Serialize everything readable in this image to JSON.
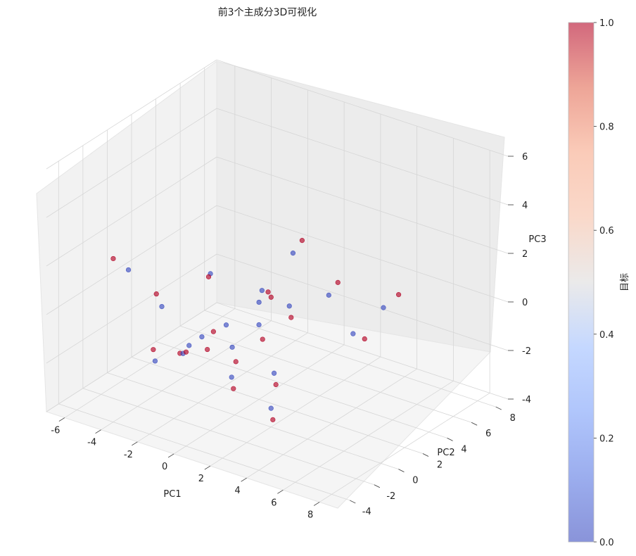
{
  "chart_data": {
    "type": "scatter",
    "title": "前3个主成分3D可视化",
    "xlabel": "PC1",
    "ylabel": "PC2",
    "zlabel": "PC3",
    "xlim": [
      -7,
      9
    ],
    "ylim": [
      -5,
      9
    ],
    "zlim": [
      -4,
      6
    ],
    "xticks": [
      "-6",
      "-4",
      "-2",
      "0",
      "2",
      "4",
      "6",
      "8"
    ],
    "yticks": [
      "-4",
      "-2",
      "0",
      "2",
      "4",
      "6",
      "8"
    ],
    "zticks": [
      "-4",
      "-2",
      "0",
      "2",
      "4",
      "6"
    ],
    "colorbar": {
      "label": "目标",
      "range": [
        0.0,
        1.0
      ],
      "ticks": [
        "0.0",
        "0.2",
        "0.4",
        "0.6",
        "0.8",
        "1.0"
      ],
      "colormap": "coolwarm"
    },
    "grid": true,
    "series": [
      {
        "name": "0",
        "color": "#3b4cc0",
        "points": [
          [
            -1.5,
            -2.0,
            -1.2
          ],
          [
            -0.8,
            -1.5,
            -0.5
          ],
          [
            0.2,
            -0.5,
            -1.0
          ],
          [
            1.0,
            0.5,
            -0.2
          ],
          [
            -2.5,
            -2.8,
            -1.5
          ],
          [
            2.0,
            1.5,
            0.5
          ],
          [
            3.5,
            2.5,
            1.0
          ],
          [
            -3.0,
            -1.5,
            0.2
          ],
          [
            0.5,
            -1.0,
            -2.0
          ],
          [
            4.5,
            3.0,
            -0.5
          ],
          [
            1.5,
            0.0,
            1.5
          ],
          [
            -1.0,
            0.8,
            -0.8
          ],
          [
            2.5,
            -0.5,
            -1.5
          ],
          [
            -2.0,
            1.0,
            1.0
          ],
          [
            0.0,
            2.0,
            0.0
          ],
          [
            5.5,
            4.0,
            0.5
          ],
          [
            -4.5,
            -2.0,
            1.5
          ],
          [
            3.0,
            -1.5,
            -2.5
          ],
          [
            1.2,
            3.0,
            2.0
          ],
          [
            -0.5,
            -3.0,
            -0.3
          ]
        ]
      },
      {
        "name": "1",
        "color": "#b40426",
        "points": [
          [
            -1.2,
            -2.2,
            -1.0
          ],
          [
            -0.3,
            -1.8,
            -0.8
          ],
          [
            0.6,
            -0.8,
            -1.4
          ],
          [
            1.4,
            0.2,
            -0.6
          ],
          [
            -2.8,
            -2.5,
            -1.2
          ],
          [
            2.3,
            1.2,
            0.2
          ],
          [
            3.8,
            2.8,
            1.5
          ],
          [
            -3.5,
            -1.2,
            0.5
          ],
          [
            0.8,
            -1.3,
            -2.3
          ],
          [
            4.8,
            3.5,
            -0.8
          ],
          [
            1.8,
            0.3,
            1.2
          ],
          [
            -1.5,
            0.5,
            -1.1
          ],
          [
            2.8,
            -0.8,
            -1.8
          ],
          [
            -2.3,
            1.3,
            0.7
          ],
          [
            0.3,
            2.3,
            0.4
          ],
          [
            6.0,
            4.5,
            1.0
          ],
          [
            -5.0,
            -2.5,
            2.0
          ],
          [
            3.3,
            -1.8,
            -2.8
          ],
          [
            1.5,
            3.3,
            2.5
          ],
          [
            -0.8,
            -3.3,
            -0.6
          ]
        ]
      }
    ]
  }
}
